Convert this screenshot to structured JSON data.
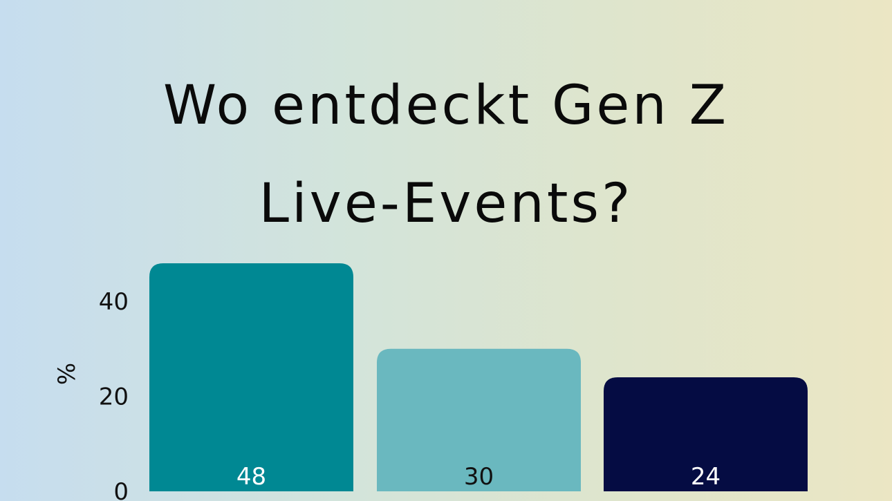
{
  "chart_data": {
    "type": "bar",
    "title": "Wo entdeckt Gen Z\nLive-Events?",
    "ylabel": "%",
    "xlabel": "",
    "categories": [
      "",
      "",
      ""
    ],
    "values": [
      48,
      30,
      24
    ],
    "data_labels": [
      "48",
      "30",
      "24"
    ],
    "yticks": [
      "0",
      "20",
      "40"
    ],
    "ylim": [
      0,
      48
    ],
    "colors": [
      "#008893",
      "#6ab8bf",
      "#050c43"
    ],
    "label_colors": [
      "#ffffff",
      "#111111",
      "#ffffff"
    ],
    "grid": false,
    "legend": "none"
  }
}
